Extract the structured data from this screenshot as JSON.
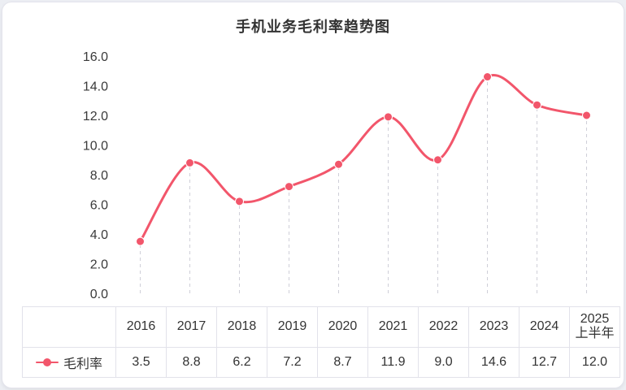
{
  "title": "手机业务毛利率趋势图",
  "colors": {
    "line": "#f2566b",
    "point": "#f2566b",
    "grid_dashed": "#cfcfd8",
    "axis_text": "#3a3a3a",
    "table_border": "#e2e2ea"
  },
  "legend": {
    "label": "毛利率"
  },
  "chart_data": {
    "type": "line",
    "title": "手机业务毛利率趋势图",
    "categories": [
      "2016",
      "2017",
      "2018",
      "2019",
      "2020",
      "2021",
      "2022",
      "2023",
      "2024",
      "2025\n上半年"
    ],
    "series": [
      {
        "name": "毛利率",
        "values": [
          3.5,
          8.8,
          6.2,
          7.2,
          8.7,
          11.9,
          9.0,
          14.6,
          12.7,
          12.0
        ]
      }
    ],
    "xlabel": "",
    "ylabel": "",
    "ylim": [
      0,
      16
    ],
    "ytick_step": 2,
    "ytick_labels": [
      "0.0",
      "2.0",
      "4.0",
      "6.0",
      "8.0",
      "10.0",
      "12.0",
      "14.0",
      "16.0"
    ],
    "grid": "dashed vertical guides from each point to baseline",
    "legend_position": "bottom-left table header cell",
    "line_style": "smooth",
    "markers": "filled circles"
  }
}
